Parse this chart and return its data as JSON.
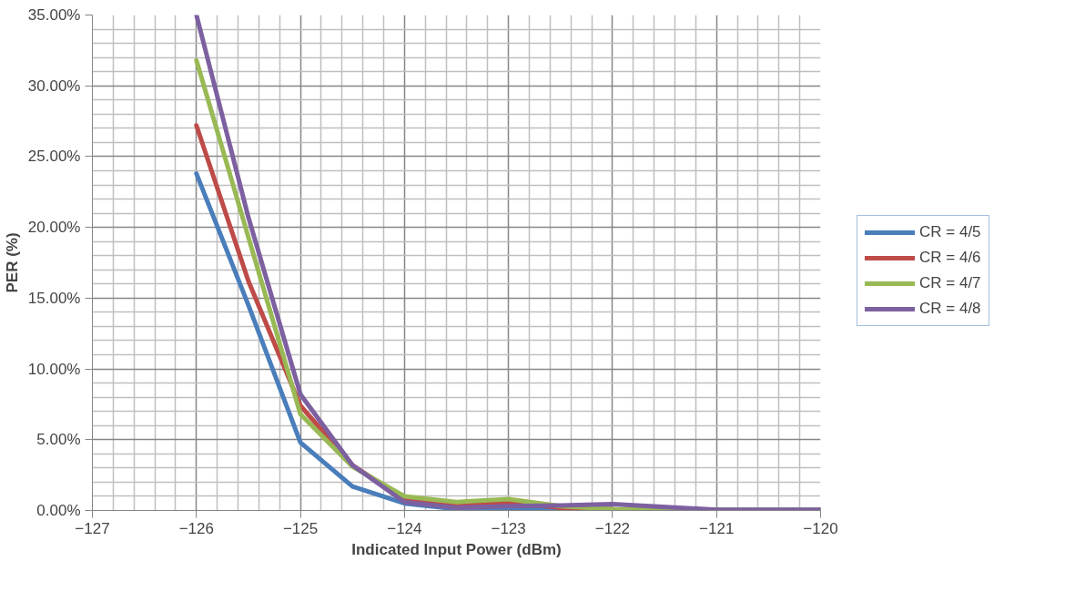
{
  "chart_data": {
    "type": "line",
    "xlabel": "Indicated Input Power (dBm)",
    "ylabel": "PER (%)",
    "x": [
      -126,
      -125.5,
      -125,
      -124.5,
      -124,
      -123.5,
      -123,
      -122.5,
      -122,
      -121,
      -120
    ],
    "series": [
      {
        "name": "CR = 4/5",
        "color": "#4a7ebb",
        "values": [
          23.8,
          14.5,
          4.8,
          1.7,
          0.5,
          0.1,
          0.1,
          0.05,
          0.05,
          0.05,
          0.05
        ]
      },
      {
        "name": "CR = 4/6",
        "color": "#be4b48",
        "values": [
          27.2,
          16.2,
          7.4,
          3.2,
          0.8,
          0.3,
          0.6,
          0.2,
          0.1,
          null,
          null
        ]
      },
      {
        "name": "CR = 4/7",
        "color": "#98b954",
        "values": [
          31.8,
          19.3,
          6.8,
          3.1,
          1.0,
          0.6,
          0.8,
          0.3,
          0.1,
          0.05,
          0.05
        ]
      },
      {
        "name": "CR = 4/8",
        "color": "#7d60a0",
        "values": [
          35.0,
          20.7,
          8.2,
          3.2,
          0.6,
          0.2,
          0.3,
          0.35,
          0.45,
          0.05,
          0.05
        ]
      }
    ],
    "xlim": [
      -127,
      -120
    ],
    "xticks": [
      -127,
      -126,
      -125,
      -124,
      -123,
      -122,
      -121,
      -120
    ],
    "ylim": [
      0,
      35
    ],
    "yticks": [
      {
        "value": 0,
        "label": "0.00%"
      },
      {
        "value": 5,
        "label": "5.00%"
      },
      {
        "value": 10,
        "label": "10.00%"
      },
      {
        "value": 15,
        "label": "15.00%"
      },
      {
        "value": 20,
        "label": "20.00%"
      },
      {
        "value": 25,
        "label": "25.00%"
      },
      {
        "value": 30,
        "label": "30.00%"
      },
      {
        "value": 35,
        "label": "35.00%"
      }
    ],
    "grid": true,
    "legend": "right",
    "marker": "none",
    "line_style": "solid"
  }
}
